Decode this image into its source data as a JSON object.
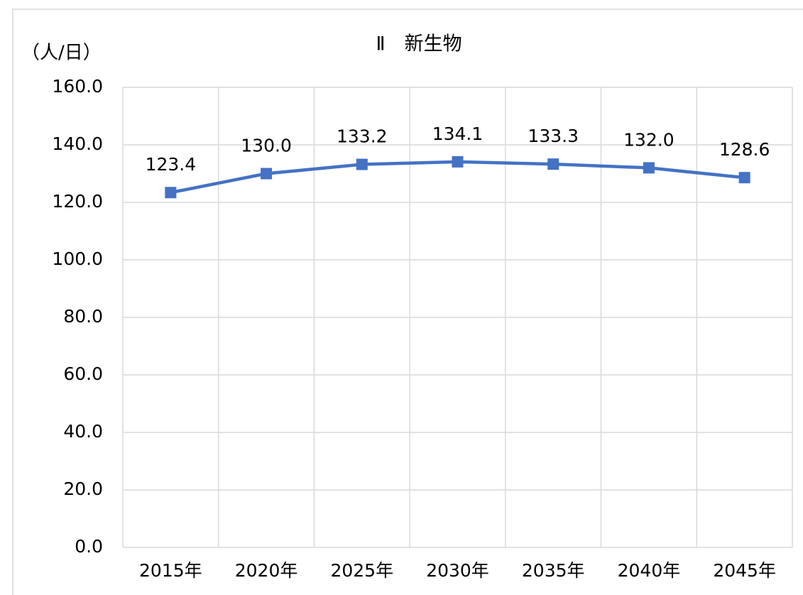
{
  "chart_data": {
    "type": "line",
    "title": "Ⅱ　新生物",
    "y_label": "（人/日）",
    "categories": [
      "2015年",
      "2020年",
      "2025年",
      "2030年",
      "2035年",
      "2040年",
      "2045年"
    ],
    "values": [
      123.4,
      130,
      133.2,
      134.1,
      133.3,
      132,
      128.6
    ],
    "value_labels": [
      "123.4",
      "130.0",
      "133.2",
      "134.1",
      "133.3",
      "132.0",
      "128.6"
    ],
    "color": "#4472c4",
    "ylim": [
      0,
      160
    ],
    "yticks": [
      {
        "value": 0,
        "label": "0.0"
      },
      {
        "value": 20,
        "label": "20.0"
      },
      {
        "value": 40,
        "label": "40.0"
      },
      {
        "value": 60,
        "label": "60.0"
      },
      {
        "value": 80,
        "label": "80.0"
      },
      {
        "value": 100,
        "label": "100.0"
      },
      {
        "value": 120,
        "label": "120.0"
      },
      {
        "value": 140,
        "label": "140.0"
      },
      {
        "value": 160,
        "label": "160.0"
      }
    ],
    "grid": true
  }
}
